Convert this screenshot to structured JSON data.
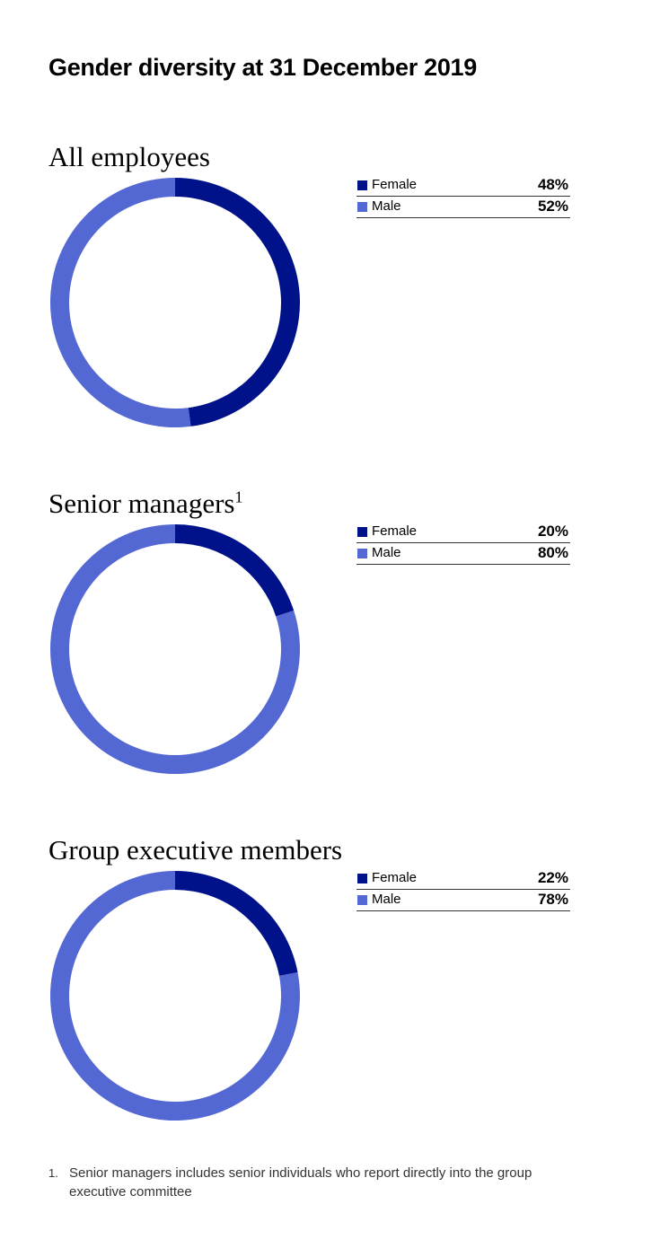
{
  "title": "Gender diversity at 31 December 2019",
  "colors": {
    "female": "#00128a",
    "male": "#5468d4"
  },
  "chart_data": [
    {
      "type": "pie",
      "title": "All employees",
      "title_sup": "",
      "categories": [
        "Female",
        "Male"
      ],
      "values": [
        48,
        52
      ],
      "labels": [
        "48%",
        "52%"
      ],
      "legend": "right"
    },
    {
      "type": "pie",
      "title": "Senior managers",
      "title_sup": "1",
      "categories": [
        "Female",
        "Male"
      ],
      "values": [
        20,
        80
      ],
      "labels": [
        "20%",
        "80%"
      ],
      "legend": "right"
    },
    {
      "type": "pie",
      "title": "Group executive members",
      "title_sup": "",
      "categories": [
        "Female",
        "Male"
      ],
      "values": [
        22,
        78
      ],
      "labels": [
        "22%",
        "78%"
      ],
      "legend": "right"
    }
  ],
  "footnote": {
    "number": "1.",
    "text": "Senior managers includes senior individuals who report directly into the group executive committee"
  }
}
